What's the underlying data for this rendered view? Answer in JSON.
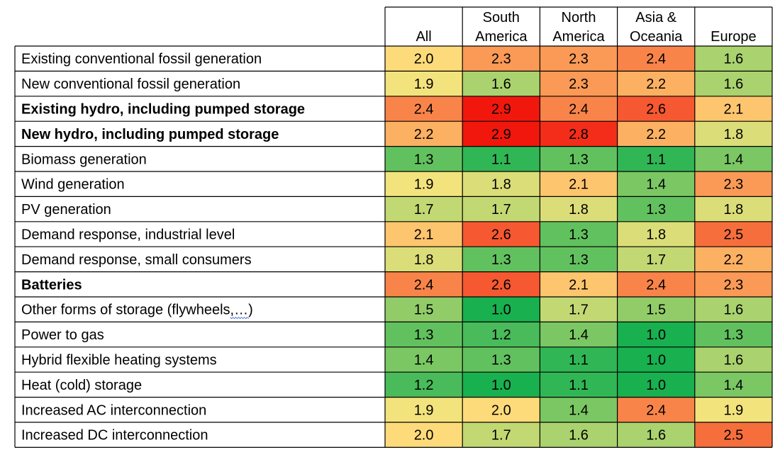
{
  "chart_data": {
    "type": "heatmap",
    "columns": [
      "All",
      "South\nAmerica",
      "North\nAmerica",
      "Asia &\nOceania",
      "Europe"
    ],
    "rows": [
      {
        "label": "Existing conventional fossil generation",
        "bold": false,
        "values": [
          2.0,
          2.3,
          2.3,
          2.4,
          1.6
        ]
      },
      {
        "label": "New conventional fossil generation",
        "bold": false,
        "values": [
          1.9,
          1.6,
          2.3,
          2.2,
          1.6
        ]
      },
      {
        "label": "Existing hydro, including pumped storage",
        "bold": true,
        "values": [
          2.4,
          2.9,
          2.4,
          2.6,
          2.1
        ]
      },
      {
        "label": "New hydro, including pumped storage",
        "bold": true,
        "values": [
          2.2,
          2.9,
          2.8,
          2.2,
          1.8
        ]
      },
      {
        "label": "Biomass generation",
        "bold": false,
        "values": [
          1.3,
          1.1,
          1.3,
          1.1,
          1.4
        ]
      },
      {
        "label": "Wind generation",
        "bold": false,
        "values": [
          1.9,
          1.8,
          2.1,
          1.4,
          2.3
        ]
      },
      {
        "label": "PV generation",
        "bold": false,
        "values": [
          1.7,
          1.7,
          1.8,
          1.3,
          1.8
        ]
      },
      {
        "label": "Demand response, industrial level",
        "bold": false,
        "values": [
          2.1,
          2.6,
          1.3,
          1.8,
          2.5
        ]
      },
      {
        "label": "Demand response, small consumers",
        "bold": false,
        "values": [
          1.8,
          1.3,
          1.3,
          1.7,
          2.2
        ]
      },
      {
        "label": "Batteries",
        "bold": true,
        "values": [
          2.4,
          2.6,
          2.1,
          2.4,
          2.3
        ]
      },
      {
        "label": "Other forms of storage (flywheels,…)",
        "bold": false,
        "values": [
          1.5,
          1.0,
          1.7,
          1.5,
          1.6
        ]
      },
      {
        "label": "Power to gas",
        "bold": false,
        "values": [
          1.3,
          1.2,
          1.4,
          1.0,
          1.3
        ]
      },
      {
        "label": "Hybrid flexible heating systems",
        "bold": false,
        "values": [
          1.4,
          1.3,
          1.1,
          1.0,
          1.6
        ]
      },
      {
        "label": "Heat (cold) storage",
        "bold": false,
        "values": [
          1.2,
          1.0,
          1.1,
          1.0,
          1.4
        ]
      },
      {
        "label": "Increased AC interconnection",
        "bold": false,
        "values": [
          1.9,
          2.0,
          1.4,
          2.4,
          1.9
        ]
      },
      {
        "label": "Increased DC interconnection",
        "bold": false,
        "values": [
          2.0,
          1.7,
          1.6,
          1.6,
          2.5
        ]
      }
    ],
    "color_scale": {
      "min": 1.0,
      "max": 2.9,
      "stops": [
        {
          "value": 1.0,
          "color": "#19b050"
        },
        {
          "value": 1.95,
          "color": "#ffe680"
        },
        {
          "value": 2.9,
          "color": "#f2170d"
        }
      ]
    }
  }
}
